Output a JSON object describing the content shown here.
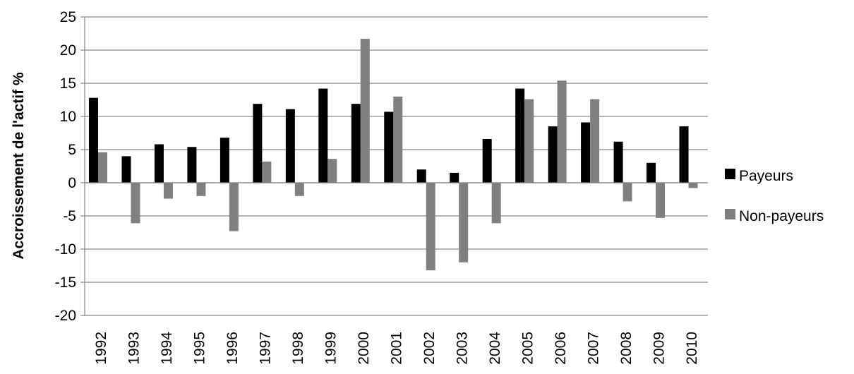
{
  "chart_data": {
    "type": "bar",
    "title": "",
    "xlabel": "",
    "ylabel": "Accroissement de l'actif %",
    "ylim": [
      -20,
      25
    ],
    "yticks": [
      -20,
      -15,
      -10,
      -5,
      0,
      5,
      10,
      15,
      20,
      25
    ],
    "grid": true,
    "legend_position": "right",
    "categories": [
      "1992",
      "1993",
      "1994",
      "1995",
      "1996",
      "1997",
      "1998",
      "1999",
      "2000",
      "2001",
      "2002",
      "2003",
      "2004",
      "2005",
      "2006",
      "2007",
      "2008",
      "2009",
      "2010"
    ],
    "series": [
      {
        "name": "Payeurs",
        "color": "#000000",
        "values": [
          12.8,
          4.0,
          5.8,
          5.4,
          6.8,
          11.9,
          11.1,
          14.2,
          11.9,
          10.7,
          2.0,
          1.5,
          6.6,
          14.2,
          8.5,
          9.1,
          6.2,
          3.0,
          8.5
        ]
      },
      {
        "name": "Non-payeurs",
        "color": "#808080",
        "values": [
          4.6,
          -6.1,
          -2.4,
          -2.0,
          -7.3,
          3.2,
          -2.0,
          3.6,
          21.7,
          13.0,
          -13.2,
          -12.0,
          -6.1,
          12.6,
          15.4,
          12.6,
          -2.8,
          -5.3,
          -0.8
        ]
      }
    ]
  }
}
